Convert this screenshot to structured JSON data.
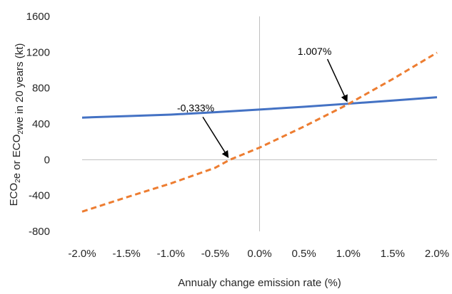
{
  "chart_data": {
    "type": "line",
    "xlabel": "Annualy change emission rate (%)",
    "ylabel": {
      "parts": [
        "ECO",
        "2",
        "e or ECO",
        "2",
        "we in 20 years (kt)"
      ]
    },
    "xlim": [
      -2.0,
      2.0
    ],
    "ylim": [
      -800,
      1600
    ],
    "x_ticks": [
      -2.0,
      -1.5,
      -1.0,
      -0.5,
      0.0,
      0.5,
      1.0,
      1.5,
      2.0
    ],
    "x_tick_labels": [
      "-2.0%",
      "-1.5%",
      "-1.0%",
      "-0.5%",
      "0.0%",
      "0.5%",
      "1.0%",
      "1.5%",
      "2.0%"
    ],
    "y_ticks": [
      -800,
      -400,
      0,
      400,
      800,
      1200,
      1600
    ],
    "y_tick_labels": [
      "-800",
      "-400",
      "0",
      "400",
      "800",
      "1200",
      "1600"
    ],
    "grid": false,
    "series": [
      {
        "style": "solid",
        "color": "#4472C4",
        "x": [
          -2.0,
          -1.5,
          -1.0,
          -0.5,
          0.0,
          0.5,
          1.0,
          1.5,
          2.0
        ],
        "y": [
          470,
          486,
          503,
          530,
          560,
          591,
          625,
          660,
          697
        ]
      },
      {
        "style": "dashed",
        "color": "#ED7D31",
        "x": [
          -2.0,
          -1.5,
          -1.0,
          -0.5,
          -0.333,
          0.0,
          0.5,
          1.0,
          1.007,
          1.5,
          2.0
        ],
        "y": [
          -580,
          -420,
          -265,
          -90,
          0,
          135,
          370,
          620,
          625,
          900,
          1195
        ]
      }
    ],
    "annotations": [
      {
        "text": "1.007%",
        "x": 1.007,
        "y": 625,
        "label_x": 0.62,
        "label_y": 1170
      },
      {
        "text": "-0,333%",
        "x": -0.333,
        "y": 0,
        "label_x": -0.72,
        "label_y": 540
      }
    ]
  }
}
